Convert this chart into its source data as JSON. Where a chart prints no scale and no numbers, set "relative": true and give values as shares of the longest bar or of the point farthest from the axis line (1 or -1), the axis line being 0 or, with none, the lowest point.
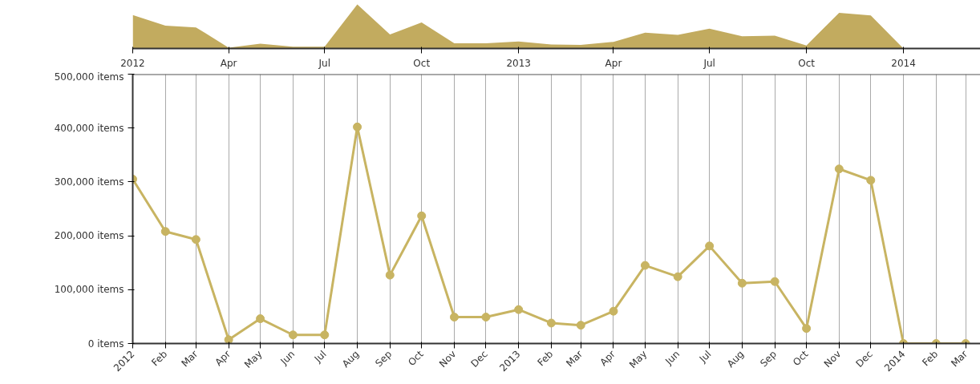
{
  "chart_data": [
    {
      "type": "area",
      "relative": true,
      "grid": false,
      "x": [
        "2012-01",
        "2012-02",
        "2012-03",
        "2012-04",
        "2012-05",
        "2012-06",
        "2012-07",
        "2012-08",
        "2012-09",
        "2012-10",
        "2012-11",
        "2012-12",
        "2013-01",
        "2013-02",
        "2013-03",
        "2013-04",
        "2013-05",
        "2013-06",
        "2013-07",
        "2013-08",
        "2013-09",
        "2013-10",
        "2013-11",
        "2013-12",
        "2014-01"
      ],
      "series": [
        {
          "color": "#c2ab5f",
          "values": [
            0.76,
            0.52,
            0.48,
            0.02,
            0.11,
            0.04,
            0.04,
            1,
            0.32,
            0.59,
            0.12,
            0.12,
            0.16,
            0.09,
            0.08,
            0.15,
            0.36,
            0.31,
            0.45,
            0.28,
            0.29,
            0.07,
            0.81,
            0.75,
            0
          ]
        }
      ],
      "xlim": [
        "2012-01",
        "2014-03-15"
      ],
      "xticks": [
        {
          "value": "2012-01",
          "label": "2012"
        },
        {
          "value": "2012-04",
          "label": "Apr"
        },
        {
          "value": "2012-07",
          "label": "Jul"
        },
        {
          "value": "2012-10",
          "label": "Oct"
        },
        {
          "value": "2013-01",
          "label": "2013"
        },
        {
          "value": "2013-04",
          "label": "Apr"
        },
        {
          "value": "2013-07",
          "label": "Jul"
        },
        {
          "value": "2013-10",
          "label": "Oct"
        },
        {
          "value": "2014-01",
          "label": "2014"
        }
      ]
    },
    {
      "type": "line",
      "marker": "circle",
      "line_style": "solid",
      "grid": "x",
      "x": [
        "2012-01",
        "2012-02",
        "2012-03",
        "2012-04",
        "2012-05",
        "2012-06",
        "2012-07",
        "2012-08",
        "2012-09",
        "2012-10",
        "2012-11",
        "2012-12",
        "2013-01",
        "2013-02",
        "2013-03",
        "2013-04",
        "2013-05",
        "2013-06",
        "2013-07",
        "2013-08",
        "2013-09",
        "2013-10",
        "2013-11",
        "2013-12",
        "2014-01",
        "2014-02",
        "2014-03"
      ],
      "series": [
        {
          "color": "#c8b462",
          "values": [
            305000,
            208000,
            193000,
            7000,
            46000,
            16000,
            16000,
            402000,
            127000,
            237000,
            49000,
            49000,
            63000,
            38000,
            34000,
            60000,
            145000,
            124000,
            181000,
            112000,
            115000,
            28000,
            324000,
            303000,
            0,
            0,
            0
          ]
        }
      ],
      "xlim": [
        "2012-01",
        "2014-03-15"
      ],
      "ylim": [
        0,
        500000
      ],
      "yticks": [
        {
          "value": 0,
          "label": "0 items"
        },
        {
          "value": 100000,
          "label": "100,000 items"
        },
        {
          "value": 200000,
          "label": "200,000 items"
        },
        {
          "value": 300000,
          "label": "300,000 items"
        },
        {
          "value": 400000,
          "label": "400,000 items"
        },
        {
          "value": 500000,
          "label": "500,000 items"
        }
      ],
      "xticks": [
        {
          "value": "2012-01",
          "label": "2012"
        },
        {
          "value": "2012-02",
          "label": "Feb"
        },
        {
          "value": "2012-03",
          "label": "Mar"
        },
        {
          "value": "2012-04",
          "label": "Apr"
        },
        {
          "value": "2012-05",
          "label": "May"
        },
        {
          "value": "2012-06",
          "label": "Jun"
        },
        {
          "value": "2012-07",
          "label": "Jul"
        },
        {
          "value": "2012-08",
          "label": "Aug"
        },
        {
          "value": "2012-09",
          "label": "Sep"
        },
        {
          "value": "2012-10",
          "label": "Oct"
        },
        {
          "value": "2012-11",
          "label": "Nov"
        },
        {
          "value": "2012-12",
          "label": "Dec"
        },
        {
          "value": "2013-01",
          "label": "2013"
        },
        {
          "value": "2013-02",
          "label": "Feb"
        },
        {
          "value": "2013-03",
          "label": "Mar"
        },
        {
          "value": "2013-04",
          "label": "Apr"
        },
        {
          "value": "2013-05",
          "label": "May"
        },
        {
          "value": "2013-06",
          "label": "Jun"
        },
        {
          "value": "2013-07",
          "label": "Jul"
        },
        {
          "value": "2013-08",
          "label": "Aug"
        },
        {
          "value": "2013-09",
          "label": "Sep"
        },
        {
          "value": "2013-10",
          "label": "Oct"
        },
        {
          "value": "2013-11",
          "label": "Nov"
        },
        {
          "value": "2013-12",
          "label": "Dec"
        },
        {
          "value": "2014-01",
          "label": "2014"
        },
        {
          "value": "2014-02",
          "label": "Feb"
        },
        {
          "value": "2014-03",
          "label": "Mar"
        }
      ]
    }
  ]
}
